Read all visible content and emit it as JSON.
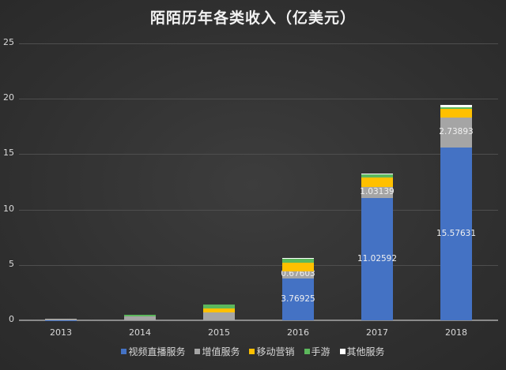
{
  "chart_data": {
    "type": "bar",
    "stacked": true,
    "title": "陌陌历年各类收入（亿美元）",
    "xlabel": "",
    "ylabel": "",
    "ylim": [
      0,
      25
    ],
    "yticks": [
      0,
      5,
      10,
      15,
      20,
      25
    ],
    "grid": true,
    "legend_position": "bottom",
    "categories": [
      "2013",
      "2014",
      "2015",
      "2016",
      "2017",
      "2018"
    ],
    "series": [
      {
        "name": "视频直播服务",
        "color": "#4472c4",
        "values": [
          0.02,
          0.0,
          0.0,
          3.76925,
          11.02592,
          15.57631
        ],
        "labels": [
          "",
          "",
          "",
          "3.76925",
          "11.02592",
          "15.57631"
        ]
      },
      {
        "name": "增值服务",
        "color": "#a5a5a5",
        "values": [
          0.1,
          0.33,
          0.7,
          0.67603,
          1.03139,
          2.73893
        ],
        "labels": [
          "",
          "",
          "",
          "0.67603",
          "1.03139",
          "2.73893"
        ]
      },
      {
        "name": "移动营销",
        "color": "#ffc000",
        "values": [
          0.0,
          0.0,
          0.35,
          0.75,
          0.8,
          0.75
        ],
        "labels": [
          "",
          "",
          "",
          "",
          "",
          ""
        ]
      },
      {
        "name": "手游",
        "color": "#5cb85c",
        "values": [
          0.0,
          0.15,
          0.35,
          0.38,
          0.3,
          0.15
        ],
        "labels": [
          "",
          "",
          "",
          "",
          "",
          ""
        ]
      },
      {
        "name": "其他服务",
        "color": "#ffffff",
        "values": [
          0.0,
          0.0,
          0.0,
          0.03,
          0.05,
          0.25
        ],
        "labels": [
          "",
          "",
          "",
          "",
          "",
          ""
        ]
      }
    ]
  }
}
